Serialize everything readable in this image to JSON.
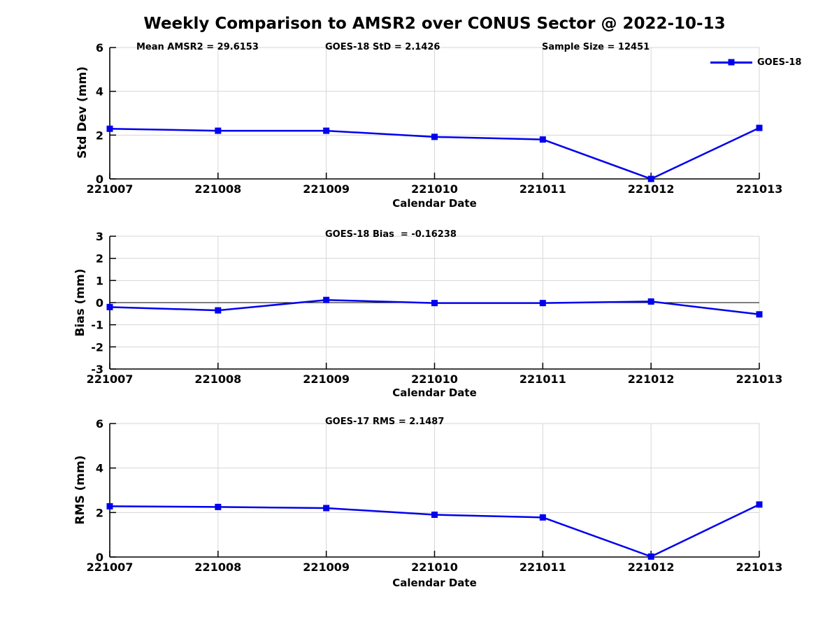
{
  "page": {
    "title": "Weekly Comparison to AMSR2 over CONUS Sector @ 2022-10-13"
  },
  "colors": {
    "series": "#0000ee",
    "grid": "#d6d6d6",
    "axis": "#000000",
    "text": "#000000",
    "background": "#ffffff"
  },
  "legend": {
    "label": "GOES-18"
  },
  "chart_data": [
    {
      "type": "line",
      "annotations": [
        "Mean AMSR2 = 29.6153",
        "GOES-18 StD = 2.1426",
        "Sample Size = 12451"
      ],
      "categories": [
        "221007",
        "221008",
        "221009",
        "221010",
        "221011",
        "221012",
        "221013"
      ],
      "series": [
        {
          "name": "GOES-18",
          "values": [
            2.29,
            2.2,
            2.2,
            1.92,
            1.8,
            0.0,
            2.33
          ]
        }
      ],
      "xlabel": "Calendar Date",
      "ylabel": "Std Dev (mm)",
      "ylim": [
        0,
        6
      ],
      "yticks": [
        0,
        2,
        4,
        6
      ],
      "grid": true,
      "zero_line": false,
      "legend_position": "top-right",
      "marker": "square"
    },
    {
      "type": "line",
      "annotations": [
        "GOES-18 Bias  = -0.16238"
      ],
      "categories": [
        "221007",
        "221008",
        "221009",
        "221010",
        "221011",
        "221012",
        "221013"
      ],
      "series": [
        {
          "name": "GOES-18",
          "values": [
            -0.2,
            -0.35,
            0.12,
            -0.02,
            -0.02,
            0.05,
            -0.53
          ]
        }
      ],
      "xlabel": "Calendar Date",
      "ylabel": "Bias (mm)",
      "ylim": [
        -3,
        3
      ],
      "yticks": [
        -3,
        -2,
        -1,
        0,
        1,
        2,
        3
      ],
      "grid": true,
      "zero_line": true,
      "marker": "square"
    },
    {
      "type": "line",
      "annotations": [
        "GOES-17 RMS = 2.1487"
      ],
      "categories": [
        "221007",
        "221008",
        "221009",
        "221010",
        "221011",
        "221012",
        "221013"
      ],
      "series": [
        {
          "name": "GOES-18",
          "values": [
            2.28,
            2.25,
            2.2,
            1.9,
            1.78,
            0.02,
            2.36
          ]
        }
      ],
      "xlabel": "Calendar Date",
      "ylabel": "RMS (mm)",
      "ylim": [
        0,
        6
      ],
      "yticks": [
        0,
        2,
        4,
        6
      ],
      "grid": true,
      "zero_line": false,
      "marker": "square"
    }
  ]
}
